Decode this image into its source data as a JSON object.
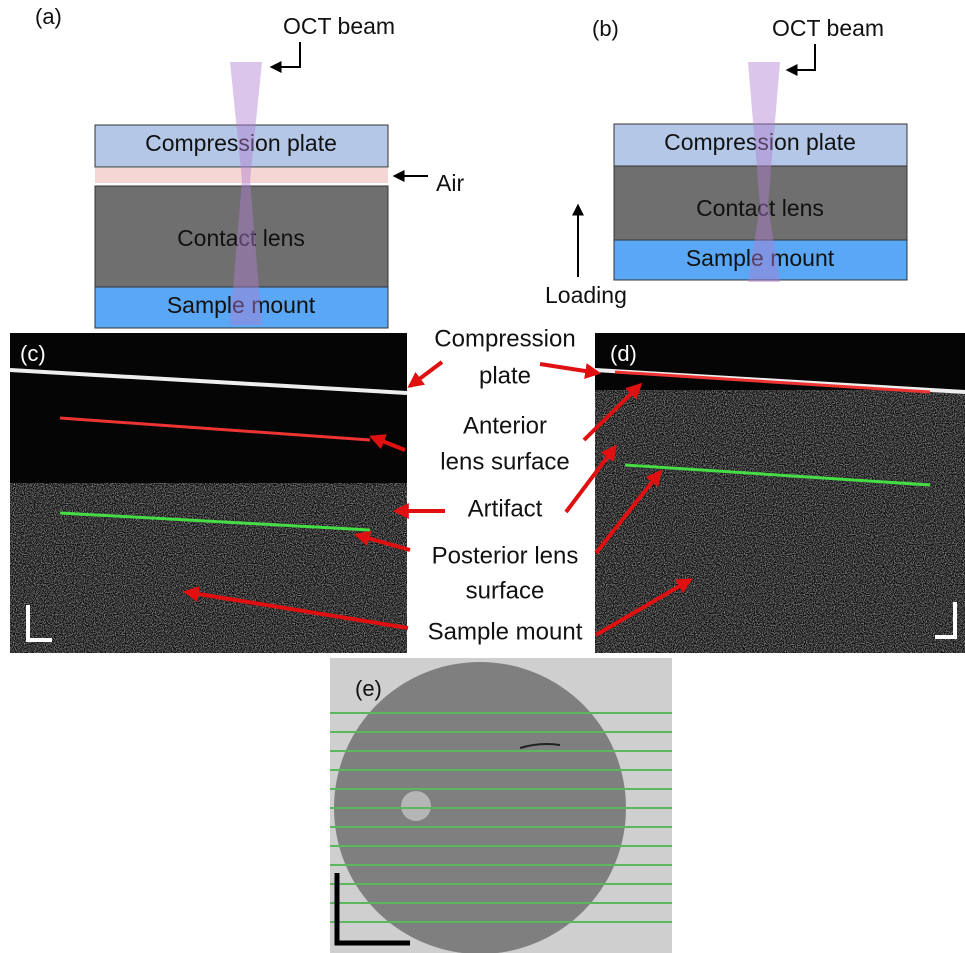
{
  "panels": {
    "a": {
      "label": "(a)",
      "beam": "OCT beam",
      "plate": "Compression plate",
      "air": "Air",
      "lens": "Contact lens",
      "mount": "Sample mount"
    },
    "b": {
      "label": "(b)",
      "beam": "OCT beam",
      "plate": "Compression plate",
      "lens": "Contact lens",
      "mount": "Sample mount",
      "loading": "Loading"
    },
    "c": {
      "label": "(c)"
    },
    "d": {
      "label": "(d)"
    },
    "e": {
      "label": "(e)"
    }
  },
  "annotations": [
    {
      "lines": [
        "Compression",
        "plate"
      ]
    },
    {
      "lines": [
        "Anterior",
        "lens surface"
      ]
    },
    {
      "lines": [
        "Artifact"
      ]
    },
    {
      "lines": [
        "Posterior lens",
        "surface"
      ]
    },
    {
      "lines": [
        "Sample mount"
      ]
    }
  ]
}
